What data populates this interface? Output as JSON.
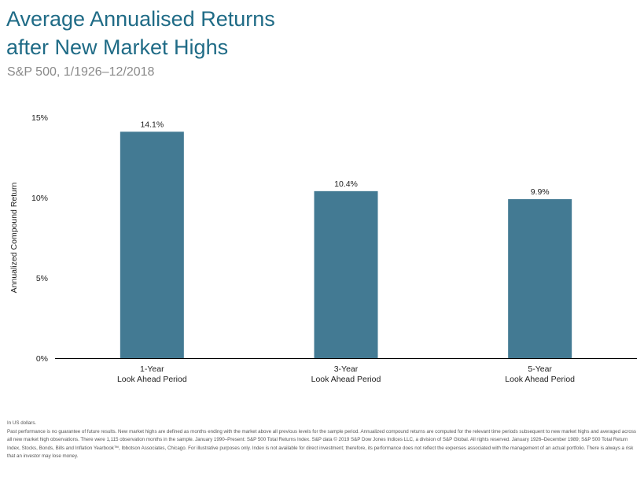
{
  "header": {
    "title_line1": "Average Annualised Returns",
    "title_line2": "after New Market Highs",
    "subtitle": "S&P 500, 1/1926–12/2018"
  },
  "colors": {
    "title": "#1f6b86",
    "bar": "#437a93",
    "axis": "#000000"
  },
  "chart_data": {
    "type": "bar",
    "categories": [
      [
        "1-Year",
        "Look Ahead Period"
      ],
      [
        "3-Year",
        "Look Ahead Period"
      ],
      [
        "5-Year",
        "Look Ahead Period"
      ]
    ],
    "values": [
      14.1,
      10.4,
      9.9
    ],
    "data_labels": [
      "14.1%",
      "10.4%",
      "9.9%"
    ],
    "ylabel": "Annualized Compound Return",
    "ylim": [
      0,
      15
    ],
    "yticks": [
      0,
      5,
      10,
      15
    ],
    "ytick_labels": [
      "0%",
      "5%",
      "10%",
      "15%"
    ],
    "grid": false,
    "legend": "none"
  },
  "footnote": {
    "line1": "In US dollars.",
    "line2": "Past performance is no guarantee of future results. New market highs are defined as months ending with the market above all previous levels for the sample period. Annualized compound returns are computed for the relevant time periods subsequent to new market highs and averaged across all new market high observations. There were 1,115 observation months in the sample. January 1990–Present: S&P 500 Total Returns Index. S&P data © 2019 S&P Dow Jones Indices LLC, a division of S&P Global. All rights reserved. January 1926–December 1989; S&P 500 Total Return Index, Stocks, Bonds, Bills and Inflation Yearbook™, Ibbotson Associates, Chicago. For illustrative purposes only. Index is not available for direct investment; therefore, its performance does not reflect the expenses associated with the management of an actual portfolio. There is always a risk that an investor may lose money."
  }
}
